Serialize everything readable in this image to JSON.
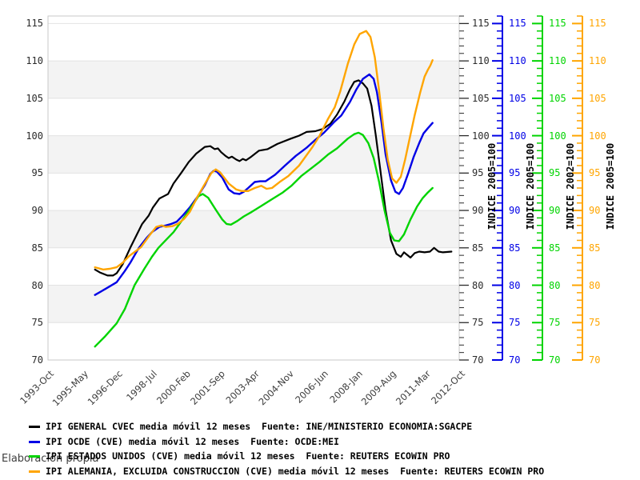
{
  "chart_data": {
    "type": "line",
    "title": "",
    "x_axis": {
      "start": 1993.75,
      "end": 2012.75,
      "tick_labels": [
        "1993-Oct",
        "1995-May",
        "1996-Dec",
        "1998-Jul",
        "2000-Feb",
        "2001-Sep",
        "2003-Apr",
        "2004-Nov",
        "2006-Jun",
        "2008-Jan",
        "2009-Aug",
        "2011-Mar",
        "2012-Oct"
      ]
    },
    "y_axis": {
      "min": 70,
      "max": 115,
      "tick_step": 5,
      "ticks": [
        115,
        110,
        105,
        100,
        95,
        90,
        85,
        80,
        75,
        70
      ]
    },
    "shaded_bands": [
      [
        75,
        80
      ],
      [
        85,
        90
      ],
      [
        95,
        100
      ],
      [
        105,
        110
      ]
    ],
    "style": {
      "band_color": "#f3f3f3",
      "grid_color": "#e2e2e2",
      "border_color": "#c9c9c9",
      "tick_text_color": "#2b2b2b"
    },
    "right_axes": [
      {
        "title": "INDICE 2005=100",
        "color": "#2b2b2b",
        "has_line": false
      },
      {
        "title": "INDICE 2005=100",
        "color": "#0000e6",
        "has_line": true
      },
      {
        "title": "INDICE 2002=100",
        "color": "#00d400",
        "has_line": true
      },
      {
        "title": "INDICE 2005=100",
        "color": "#ffa500",
        "has_line": true
      }
    ],
    "series": [
      {
        "name": "IPI GENERAL CVEC media móvil 12 meses",
        "color": "#000000",
        "width": 2.2,
        "points": [
          [
            1995.92,
            82.1
          ],
          [
            1996.15,
            81.7
          ],
          [
            1996.5,
            81.3
          ],
          [
            1996.75,
            81.3
          ],
          [
            1996.92,
            81.6
          ],
          [
            1997.2,
            82.8
          ],
          [
            1997.55,
            85.0
          ],
          [
            1998.1,
            88.2
          ],
          [
            1998.4,
            89.3
          ],
          [
            1998.6,
            90.4
          ],
          [
            1998.9,
            91.6
          ],
          [
            1999.1,
            91.9
          ],
          [
            1999.3,
            92.2
          ],
          [
            1999.55,
            93.6
          ],
          [
            1999.9,
            95.0
          ],
          [
            2000.26,
            96.5
          ],
          [
            2000.6,
            97.6
          ],
          [
            2001.0,
            98.5
          ],
          [
            2001.25,
            98.6
          ],
          [
            2001.45,
            98.2
          ],
          [
            2001.6,
            98.3
          ],
          [
            2001.75,
            97.8
          ],
          [
            2001.95,
            97.3
          ],
          [
            2002.1,
            97.0
          ],
          [
            2002.25,
            97.2
          ],
          [
            2002.45,
            96.8
          ],
          [
            2002.6,
            96.6
          ],
          [
            2002.75,
            96.9
          ],
          [
            2002.9,
            96.7
          ],
          [
            2003.1,
            97.1
          ],
          [
            2003.5,
            98.0
          ],
          [
            2003.9,
            98.2
          ],
          [
            2004.35,
            98.9
          ],
          [
            2004.97,
            99.6
          ],
          [
            2005.35,
            100.0
          ],
          [
            2005.7,
            100.5
          ],
          [
            2006.1,
            100.6
          ],
          [
            2006.45,
            100.9
          ],
          [
            2006.8,
            101.6
          ],
          [
            2007.1,
            102.8
          ],
          [
            2007.45,
            104.6
          ],
          [
            2007.7,
            106.2
          ],
          [
            2007.9,
            107.2
          ],
          [
            2008.1,
            107.4
          ],
          [
            2008.3,
            107.0
          ],
          [
            2008.5,
            106.3
          ],
          [
            2008.7,
            104.0
          ],
          [
            2008.9,
            100.0
          ],
          [
            2009.1,
            95.5
          ],
          [
            2009.35,
            90.0
          ],
          [
            2009.6,
            86.0
          ],
          [
            2009.85,
            84.2
          ],
          [
            2010.05,
            83.8
          ],
          [
            2010.2,
            84.4
          ],
          [
            2010.5,
            83.7
          ],
          [
            2010.7,
            84.3
          ],
          [
            2010.9,
            84.5
          ],
          [
            2011.15,
            84.4
          ],
          [
            2011.4,
            84.5
          ],
          [
            2011.59,
            85.0
          ],
          [
            2011.8,
            84.5
          ],
          [
            2012.0,
            84.4
          ],
          [
            2012.39,
            84.5
          ]
        ]
      },
      {
        "name": "IPI OCDE (CVE) media móvil 12 meses",
        "color": "#0000e6",
        "width": 2.4,
        "points": [
          [
            1995.92,
            78.7
          ],
          [
            1996.4,
            79.5
          ],
          [
            1996.92,
            80.4
          ],
          [
            1997.3,
            81.9
          ],
          [
            1997.55,
            83.0
          ],
          [
            1997.95,
            85.0
          ],
          [
            1998.3,
            86.3
          ],
          [
            1998.55,
            87.1
          ],
          [
            1998.9,
            87.8
          ],
          [
            1999.2,
            88.0
          ],
          [
            1999.45,
            88.2
          ],
          [
            1999.7,
            88.5
          ],
          [
            2000.0,
            89.4
          ],
          [
            2000.3,
            90.4
          ],
          [
            2000.65,
            91.8
          ],
          [
            2001.0,
            93.4
          ],
          [
            2001.25,
            94.9
          ],
          [
            2001.4,
            95.3
          ],
          [
            2001.55,
            95.2
          ],
          [
            2001.8,
            94.4
          ],
          [
            2002.1,
            92.8
          ],
          [
            2002.35,
            92.3
          ],
          [
            2002.6,
            92.2
          ],
          [
            2002.8,
            92.5
          ],
          [
            2003.0,
            93.0
          ],
          [
            2003.3,
            93.8
          ],
          [
            2003.55,
            93.9
          ],
          [
            2003.8,
            93.9
          ],
          [
            2004.25,
            94.8
          ],
          [
            2004.7,
            96.0
          ],
          [
            2005.2,
            97.3
          ],
          [
            2005.7,
            98.4
          ],
          [
            2006.05,
            99.3
          ],
          [
            2006.5,
            100.4
          ],
          [
            2007.0,
            101.9
          ],
          [
            2007.3,
            102.7
          ],
          [
            2007.7,
            104.5
          ],
          [
            2008.0,
            106.2
          ],
          [
            2008.3,
            107.6
          ],
          [
            2008.6,
            108.2
          ],
          [
            2008.8,
            107.6
          ],
          [
            2008.95,
            105.8
          ],
          [
            2009.15,
            102.0
          ],
          [
            2009.35,
            97.5
          ],
          [
            2009.6,
            94.0
          ],
          [
            2009.8,
            92.5
          ],
          [
            2009.97,
            92.2
          ],
          [
            2010.15,
            93.0
          ],
          [
            2010.4,
            95.0
          ],
          [
            2010.65,
            97.2
          ],
          [
            2010.9,
            99.0
          ],
          [
            2011.1,
            100.3
          ],
          [
            2011.3,
            101.0
          ],
          [
            2011.52,
            101.7
          ]
        ]
      },
      {
        "name": "IPI ESTADOS UNIDOS (CVE) media móvil 12 meses",
        "color": "#00d400",
        "width": 2.4,
        "points": [
          [
            1995.92,
            71.8
          ],
          [
            1996.4,
            73.2
          ],
          [
            1996.92,
            74.9
          ],
          [
            1997.3,
            76.8
          ],
          [
            1997.75,
            80.0
          ],
          [
            1998.2,
            82.2
          ],
          [
            1998.55,
            83.8
          ],
          [
            1998.85,
            85.0
          ],
          [
            1999.25,
            86.2
          ],
          [
            1999.55,
            87.1
          ],
          [
            2000.1,
            89.3
          ],
          [
            2000.45,
            90.8
          ],
          [
            2000.7,
            91.9
          ],
          [
            2000.9,
            92.2
          ],
          [
            2001.15,
            91.7
          ],
          [
            2001.5,
            90.1
          ],
          [
            2001.8,
            88.8
          ],
          [
            2002.0,
            88.2
          ],
          [
            2002.2,
            88.1
          ],
          [
            2002.5,
            88.6
          ],
          [
            2002.8,
            89.2
          ],
          [
            2003.16,
            89.8
          ],
          [
            2003.6,
            90.6
          ],
          [
            2004.1,
            91.5
          ],
          [
            2004.6,
            92.4
          ],
          [
            2005.0,
            93.3
          ],
          [
            2005.45,
            94.6
          ],
          [
            2005.9,
            95.6
          ],
          [
            2006.3,
            96.5
          ],
          [
            2006.7,
            97.5
          ],
          [
            2007.1,
            98.3
          ],
          [
            2007.6,
            99.6
          ],
          [
            2007.9,
            100.2
          ],
          [
            2008.1,
            100.4
          ],
          [
            2008.3,
            100.1
          ],
          [
            2008.55,
            99.0
          ],
          [
            2008.8,
            97.0
          ],
          [
            2009.05,
            93.8
          ],
          [
            2009.3,
            90.0
          ],
          [
            2009.55,
            87.0
          ],
          [
            2009.75,
            86.0
          ],
          [
            2009.97,
            85.9
          ],
          [
            2010.2,
            86.8
          ],
          [
            2010.5,
            88.8
          ],
          [
            2010.8,
            90.5
          ],
          [
            2011.05,
            91.6
          ],
          [
            2011.3,
            92.4
          ],
          [
            2011.52,
            93.0
          ]
        ]
      },
      {
        "name": "IPI ALEMANIA, EXCLUIDA CONSTRUCCION (CVE) media móvil 12 meses",
        "color": "#ffa500",
        "width": 2.4,
        "points": [
          [
            1995.92,
            82.4
          ],
          [
            1996.3,
            82.1
          ],
          [
            1996.6,
            82.2
          ],
          [
            1996.92,
            82.4
          ],
          [
            1997.2,
            83.0
          ],
          [
            1997.5,
            83.9
          ],
          [
            1998.05,
            85.1
          ],
          [
            1998.45,
            86.7
          ],
          [
            1998.75,
            87.8
          ],
          [
            1999.0,
            88.0
          ],
          [
            1999.2,
            87.8
          ],
          [
            1999.5,
            87.9
          ],
          [
            1999.75,
            88.2
          ],
          [
            2000.05,
            88.9
          ],
          [
            2000.3,
            89.8
          ],
          [
            2000.65,
            91.8
          ],
          [
            2001.05,
            93.8
          ],
          [
            2001.3,
            95.0
          ],
          [
            2001.5,
            95.5
          ],
          [
            2001.7,
            95.1
          ],
          [
            2002.1,
            93.6
          ],
          [
            2002.45,
            92.8
          ],
          [
            2002.7,
            92.6
          ],
          [
            2003.0,
            92.6
          ],
          [
            2003.3,
            93.0
          ],
          [
            2003.6,
            93.3
          ],
          [
            2003.85,
            92.9
          ],
          [
            2004.1,
            93.0
          ],
          [
            2004.5,
            93.9
          ],
          [
            2004.85,
            94.6
          ],
          [
            2005.35,
            96.0
          ],
          [
            2005.95,
            98.4
          ],
          [
            2006.3,
            100.0
          ],
          [
            2006.7,
            102.3
          ],
          [
            2007.0,
            103.8
          ],
          [
            2007.25,
            105.9
          ],
          [
            2007.6,
            109.6
          ],
          [
            2007.9,
            112.2
          ],
          [
            2008.15,
            113.6
          ],
          [
            2008.45,
            114.0
          ],
          [
            2008.65,
            113.2
          ],
          [
            2008.85,
            110.5
          ],
          [
            2009.05,
            106.0
          ],
          [
            2009.25,
            101.0
          ],
          [
            2009.45,
            96.8
          ],
          [
            2009.65,
            94.3
          ],
          [
            2009.85,
            93.7
          ],
          [
            2010.05,
            94.5
          ],
          [
            2010.25,
            96.8
          ],
          [
            2010.45,
            99.5
          ],
          [
            2010.7,
            102.8
          ],
          [
            2010.95,
            105.8
          ],
          [
            2011.15,
            107.9
          ],
          [
            2011.3,
            108.8
          ],
          [
            2011.42,
            109.4
          ],
          [
            2011.52,
            110.1
          ]
        ]
      }
    ]
  },
  "legend": {
    "items": [
      {
        "label": "IPI GENERAL CVEC media móvil 12 meses  Fuente: INE/MINISTERIO ECONOMIA:SGACPE",
        "color": "#000000"
      },
      {
        "label": "IPI OCDE (CVE) media móvil 12 meses  Fuente: OCDE:MEI",
        "color": "#0000e6"
      },
      {
        "label": "IPI ESTADOS UNIDOS (CVE) media móvil 12 meses  Fuente: REUTERS ECOWIN PRO",
        "color": "#00d400"
      },
      {
        "label": "IPI ALEMANIA, EXCLUIDA CONSTRUCCION (CVE) media móvil 12 meses  Fuente: REUTERS ECOWIN PRO",
        "color": "#ffa500"
      }
    ]
  },
  "footer_note": "Elaboración propia"
}
